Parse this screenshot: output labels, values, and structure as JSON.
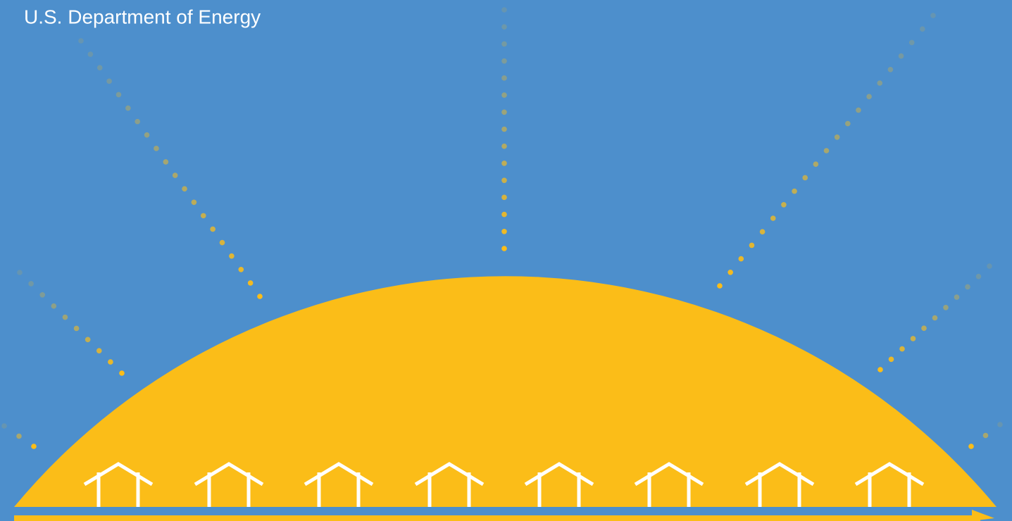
{
  "header": {
    "title": "U.S. Department of Energy"
  }
}
